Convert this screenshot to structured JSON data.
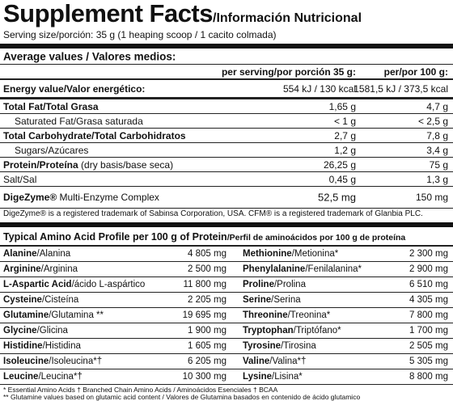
{
  "header": {
    "title": "Supplement Facts",
    "subtitle": "/Información Nutricional",
    "serving": "Serving size/porción: 35 g (1 heaping scoop / 1 cacito colmada)"
  },
  "nutrition": {
    "heading": "Average values / Valores medios:",
    "col_serving": "per serving/por porción 35 g:",
    "col_100g": "per/por 100 g:",
    "rows": [
      {
        "label": "Energy value/Valor energético:",
        "serving": "554 kJ / 130 kcal",
        "per_100g": "1581,5 kJ / 373,5 kcal"
      },
      {
        "label": "Total Fat/Total Grasa",
        "serving": "1,65 g",
        "per_100g": "4,7 g"
      },
      {
        "label": "Saturated Fat/Grasa saturada",
        "serving": "< 1 g",
        "per_100g": "< 2,5 g"
      },
      {
        "label": "Total Carbohydrate/Total Carbohidratos",
        "serving": "2,7 g",
        "per_100g": "7,8 g"
      },
      {
        "label": "Sugars/Azúcares",
        "serving": "1,2 g",
        "per_100g": "3,4 g"
      },
      {
        "label": "Protein/Proteína",
        "label_note": "(dry basis/base seca)",
        "serving": "26,25 g",
        "per_100g": "75 g"
      },
      {
        "label": "Salt/Sal",
        "serving": "0,45 g",
        "per_100g": "1,3 g"
      },
      {
        "label": "DigeZyme®",
        "label_note": "Multi-Enzyme Complex",
        "serving": "52,5 mg",
        "per_100g": "150 mg"
      }
    ],
    "trademark": "DigeZyme® is a registered trademark of Sabinsa Corporation, USA. CFM® is a registered trademark of Glanbia PLC."
  },
  "amino": {
    "heading": "Typical Amino Acid Profile per 100 g of Protein",
    "heading_es": "/Perfil de aminoácidos por 100 g de proteína",
    "left": [
      {
        "name": "Alanine",
        "name_es": "/Alanina",
        "amount": "4 805 mg"
      },
      {
        "name": "Arginine",
        "name_es": "/Arginina",
        "amount": "2 500 mg"
      },
      {
        "name": "L-Aspartic Acid",
        "name_es": "/ácido L-aspártico",
        "amount": "11 800 mg"
      },
      {
        "name": "Cysteine",
        "name_es": "/Cisteína",
        "amount": "2 205 mg"
      },
      {
        "name": "Glutamine",
        "name_es": "/Glutamina **",
        "amount": "19 695 mg"
      },
      {
        "name": "Glycine",
        "name_es": "/Glicina",
        "amount": "1 900 mg"
      },
      {
        "name": "Histidine",
        "name_es": "/Histidina",
        "amount": "1 605 mg"
      },
      {
        "name": "Isoleucine",
        "name_es": "/Isoleucina*†",
        "amount": "6 205 mg"
      },
      {
        "name": "Leucine",
        "name_es": "/Leucina*†",
        "amount": "10 300 mg"
      }
    ],
    "right": [
      {
        "name": "Methionine",
        "name_es": "/Metionina*",
        "amount": "2 300 mg"
      },
      {
        "name": "Phenylalanine",
        "name_es": "/Fenilalanina*",
        "amount": "2 900 mg"
      },
      {
        "name": "Proline",
        "name_es": "/Prolina",
        "amount": "6 510 mg"
      },
      {
        "name": "Serine",
        "name_es": "/Serina",
        "amount": "4 305 mg"
      },
      {
        "name": "Threonine",
        "name_es": "/Treonina*",
        "amount": "7 800 mg"
      },
      {
        "name": "Tryptophan",
        "name_es": "/Triptófano*",
        "amount": "1 700 mg"
      },
      {
        "name": "Tyrosine",
        "name_es": "/Tirosina",
        "amount": "2 505 mg"
      },
      {
        "name": "Valine",
        "name_es": "/Valina*†",
        "amount": "5 305 mg"
      },
      {
        "name": "Lysine",
        "name_es": "/Lisina*",
        "amount": "8 800 mg"
      }
    ],
    "footnotes": [
      "* Essential Amino Acids   † Branched Chain Amino Acids / Aminoácidos Esenciales   † BCAA",
      "** Glutamine values based on glutamic acid content / Valores de Glutamina basados en contenido de ácido glutamico"
    ]
  }
}
